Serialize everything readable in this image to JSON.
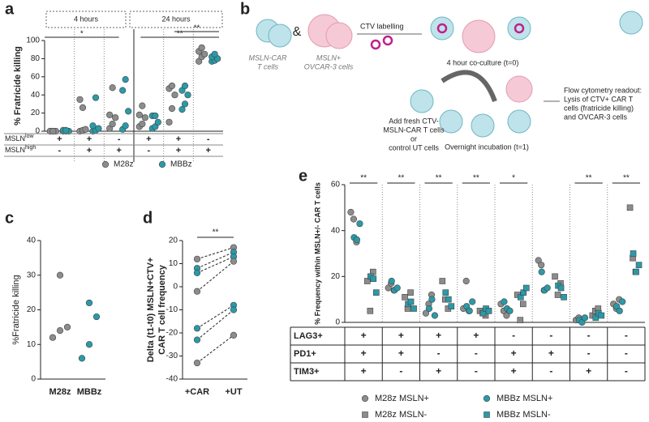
{
  "panel_labels": [
    "a",
    "b",
    "c",
    "d",
    "e"
  ],
  "chart_data": [
    {
      "type": "dot",
      "ylabel": "% Fratricide killing",
      "ylim": [
        0,
        100
      ],
      "yticks": [
        0,
        20,
        40,
        60,
        80,
        100
      ],
      "time_headers": [
        "4 hours",
        "24 hours"
      ],
      "significance": [
        "*",
        "**",
        "**"
      ],
      "row_labels": [
        {
          "main": "MSLN",
          "sup": "low"
        },
        {
          "main": "MSLN",
          "sup": "high"
        }
      ],
      "rows": [
        [
          "+",
          "+",
          "-",
          "+",
          "+",
          "-"
        ],
        [
          "-",
          "+",
          "+",
          "-",
          "+",
          "+"
        ]
      ],
      "series": [
        {
          "name": "M28z",
          "color": "#8c8c8c",
          "marker": "circle",
          "values": [
            [
              0,
              0,
              0,
              0,
              0
            ],
            [
              0,
              1,
              2,
              35,
              26
            ],
            [
              3,
              8,
              15,
              18,
              48
            ],
            [
              5,
              8,
              15,
              18,
              28
            ],
            [
              10,
              25,
              40,
              47,
              50
            ],
            [
              77,
              82,
              85,
              88,
              92
            ]
          ]
        },
        {
          "name": "MBBz",
          "color": "#2a9aa8",
          "marker": "circle",
          "values": [
            [
              0,
              0,
              0,
              1,
              1
            ],
            [
              0,
              1,
              3,
              6,
              37
            ],
            [
              2,
              6,
              22,
              45,
              57
            ],
            [
              3,
              5,
              10,
              17,
              17
            ],
            [
              24,
              30,
              40,
              45,
              50
            ],
            [
              77,
              78,
              80,
              82,
              85
            ]
          ]
        }
      ]
    },
    {
      "type": "dot",
      "ylabel": "%Fratricide killing",
      "ylim": [
        0,
        40
      ],
      "yticks": [
        0,
        10,
        20,
        30,
        40
      ],
      "categories": [
        "M28z",
        "MBBz"
      ],
      "colors": [
        "#8c8c8c",
        "#2a9aa8"
      ],
      "values": [
        [
          12,
          14,
          15,
          30
        ],
        [
          6,
          10,
          18,
          22
        ]
      ]
    },
    {
      "type": "paired",
      "ylabel": [
        "Delta (t1-t0)  MSLN+CTV+",
        "CAR T cell frequency"
      ],
      "ylim": [
        -40,
        20
      ],
      "yticks": [
        -40,
        -30,
        -20,
        -10,
        0,
        10,
        20
      ],
      "categories": [
        "+CAR",
        "+UT"
      ],
      "significance": "**",
      "colors": [
        "#8c8c8c",
        "#2a9aa8",
        "#2a9aa8",
        "#8c8c8c",
        "#2a9aa8",
        "#2a9aa8",
        "#8c8c8c"
      ],
      "values": [
        [
          12,
          8,
          6,
          -2,
          -18,
          -23,
          -33
        ],
        [
          17,
          15,
          13,
          11,
          -8,
          -10,
          -21
        ]
      ]
    },
    {
      "type": "dot",
      "ylabel": "% Frequency within MSLN+/- CAR  T cells",
      "ylim": [
        0,
        60
      ],
      "yticks": [
        0,
        20,
        40,
        60
      ],
      "significance": [
        "**",
        "**",
        "**",
        "**",
        "*",
        null,
        "**",
        "**"
      ],
      "row_labels": [
        "LAG3+",
        "PD1+",
        "TIM3+"
      ],
      "rows": [
        [
          "+",
          "+",
          "+",
          "+",
          "-",
          "-",
          "-",
          "-"
        ],
        [
          "+",
          "+",
          "-",
          "-",
          "+",
          "+",
          "-",
          "-"
        ],
        [
          "+",
          "-",
          "+",
          "-",
          "+",
          "-",
          "+",
          "-"
        ]
      ],
      "series": [
        {
          "name": "M28z MSLN+",
          "color": "#8c8c8c",
          "marker": "circle",
          "values": [
            [
              48,
              45,
              35
            ],
            [
              15,
              17,
              14
            ],
            [
              4,
              8,
              12
            ],
            [
              6,
              18,
              5
            ],
            [
              8,
              5,
              3
            ],
            [
              27,
              25,
              14
            ],
            [
              1,
              2,
              1
            ],
            [
              8,
              6,
              10
            ]
          ]
        },
        {
          "name": "M28z MSLN-",
          "color": "#8c8c8c",
          "marker": "square",
          "values": [
            [
              18,
              5,
              22
            ],
            [
              11,
              6,
              13
            ],
            [
              18,
              10,
              6
            ],
            [
              5,
              4,
              3
            ],
            [
              12,
              1,
              8
            ],
            [
              20,
              12,
              17
            ],
            [
              3,
              5,
              6
            ],
            [
              50,
              28,
              22
            ]
          ]
        },
        {
          "name": "MBBz MSLN+",
          "color": "#2a9aa8",
          "marker": "circle",
          "values": [
            [
              37,
              36,
              43
            ],
            [
              18,
              14,
              15
            ],
            [
              6,
              10,
              3
            ],
            [
              7,
              5,
              9
            ],
            [
              9,
              6,
              5
            ],
            [
              22,
              14,
              15
            ],
            [
              1,
              0,
              2
            ],
            [
              7,
              5,
              9
            ]
          ]
        },
        {
          "name": "MBBz MSLN-",
          "color": "#2a9aa8",
          "marker": "square",
          "values": [
            [
              20,
              19,
              13
            ],
            [
              8,
              9,
              6
            ],
            [
              13,
              10,
              7
            ],
            [
              4,
              6,
              5
            ],
            [
              11,
              13,
              15
            ],
            [
              16,
              15,
              11
            ],
            [
              2,
              4,
              3
            ],
            [
              30,
              22,
              25
            ]
          ]
        }
      ]
    }
  ],
  "diagram": {
    "car_cells": [
      "MSLN-CAR",
      "T cells"
    ],
    "amp": "&",
    "tumor_cells": [
      "MSLN+",
      "OVCAR-3 cells"
    ],
    "step1": "CTV labelling",
    "step2": "4 hour co-culture (t=0)",
    "step3": [
      "Add fresh CTV-",
      "MSLN-CAR T cells",
      "or",
      "control UT cells"
    ],
    "step4": "Overnight incubation (t=1)",
    "readout": [
      "Flow cytometry readout:",
      "Lysis of CTV+ CAR T",
      "cells (fratricide killing)",
      "and OVCAR-3 cells"
    ]
  }
}
